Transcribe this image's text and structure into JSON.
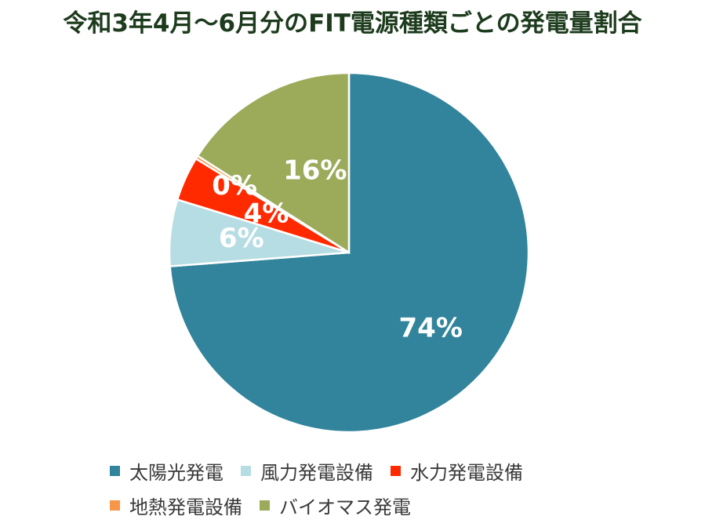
{
  "title": "令和3年4月～6月分のFIT電源種類ごとの発電量割合",
  "chart_data": {
    "type": "pie",
    "start_angle_deg": 0,
    "direction": "clockwise",
    "slices": [
      {
        "name": "太陽光発電",
        "value": 74,
        "label": "74%",
        "color": "#31849b"
      },
      {
        "name": "風力発電設備",
        "value": 6,
        "label": "6%",
        "color": "#b6dde3"
      },
      {
        "name": "水力発電設備",
        "value": 4,
        "label": "4%",
        "color": "#ff2a00"
      },
      {
        "name": "地熱発電設備",
        "value": 0.3,
        "label": "0%",
        "color": "#f79646"
      },
      {
        "name": "バイオマス発電",
        "value": 16,
        "label": "16%",
        "color": "#9bab5a"
      }
    ],
    "legend_position": "bottom",
    "legend_rows": [
      [
        0,
        1,
        2
      ],
      [
        3,
        4
      ]
    ]
  }
}
